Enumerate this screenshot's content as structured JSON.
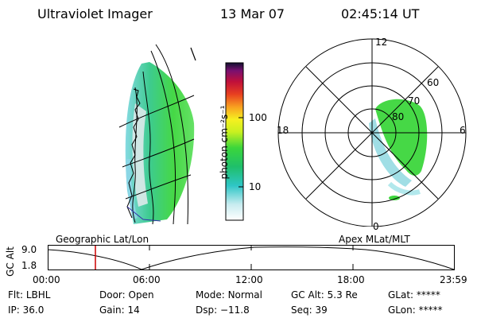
{
  "header": {
    "instrument": "Ultraviolet Imager",
    "date": "13 Mar 07",
    "time": "02:45:14 UT"
  },
  "colorbar": {
    "label": "photon cm⁻²s⁻¹",
    "ticks": [
      "100",
      "10"
    ]
  },
  "polar_plot": {
    "mlt_labels": [
      "12",
      "6",
      "0",
      "18"
    ],
    "lat_labels": [
      "60",
      "70",
      "80"
    ]
  },
  "projection": {
    "left_title": "Geographic Lat/Lon",
    "right_title": "Apex MLat/MLT"
  },
  "altitude_plot": {
    "ylabel": "GC Alt",
    "yticks": [
      "9.0",
      "1.8"
    ],
    "xticks": [
      "00:00",
      "06:00",
      "12:00",
      "18:00",
      "23:59"
    ],
    "marker_color": "#cc0000"
  },
  "status": {
    "row1": [
      {
        "key": "Flt:",
        "value": "LBHL"
      },
      {
        "key": "Door:",
        "value": "Open"
      },
      {
        "key": "Mode:",
        "value": "Normal"
      },
      {
        "key": "GC Alt:",
        "value": "5.3 Re"
      },
      {
        "key": "GLat:",
        "value": "*****"
      }
    ],
    "row2": [
      {
        "key": "IP:",
        "value": "36.0"
      },
      {
        "key": "Gain:",
        "value": "14"
      },
      {
        "key": "Dsp:",
        "value": "−11.8"
      },
      {
        "key": "Seq:",
        "value": "39"
      },
      {
        "key": "GLon:",
        "value": "*****"
      }
    ]
  }
}
